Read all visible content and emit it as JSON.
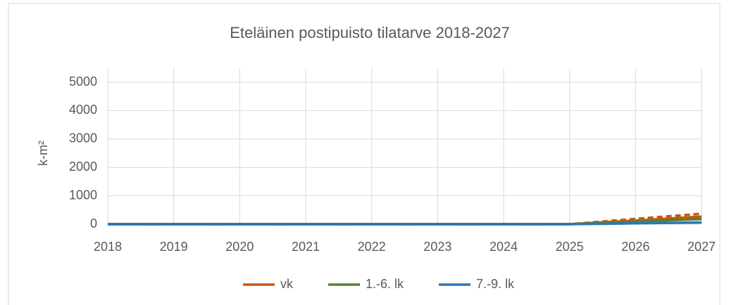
{
  "chart_data": {
    "type": "line",
    "title": "Eteläinen postipuisto tilatarve 2018-2027",
    "y_label": "k-m²",
    "categories": [
      "2018",
      "2019",
      "2020",
      "2021",
      "2022",
      "2023",
      "2024",
      "2025",
      "2026",
      "2027"
    ],
    "series": [
      {
        "color": "#c55a11",
        "dashed": true,
        "values": [
          0,
          0,
          0,
          0,
          0,
          0,
          0,
          0,
          190,
          370
        ]
      },
      {
        "color": "#548235",
        "dashed": true,
        "values": [
          0,
          0,
          0,
          0,
          0,
          0,
          0,
          0,
          140,
          250
        ]
      },
      {
        "name": "vk",
        "color": "#c55a11",
        "values": [
          0,
          0,
          0,
          0,
          0,
          0,
          0,
          0,
          130,
          270
        ]
      },
      {
        "name": "1.-6. lk",
        "color": "#548235",
        "values": [
          0,
          0,
          0,
          0,
          0,
          0,
          0,
          0,
          90,
          180
        ]
      },
      {
        "name": "7.-9. lk",
        "color": "#2e75b6",
        "values": [
          0,
          0,
          0,
          0,
          0,
          0,
          0,
          0,
          30,
          60
        ]
      }
    ],
    "ylim": [
      0,
      5000
    ],
    "yticks": [
      0,
      1000,
      2000,
      3000,
      4000,
      5000
    ],
    "grid": true,
    "legend": "bottom"
  }
}
